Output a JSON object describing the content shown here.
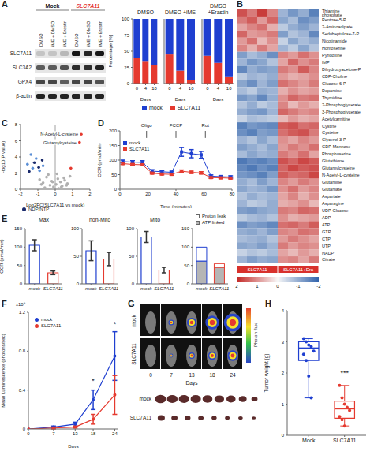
{
  "blot": {
    "panel": "A",
    "groups": [
      "Mock",
      "SLC7A11"
    ],
    "lanes": [
      "DMSO",
      "iME + DMSO",
      "iME + Erastin",
      "DMSO",
      "iME + DMSO",
      "iME + Erastin"
    ],
    "rows": [
      "SLC7A11",
      "SLC3A2",
      "GPX4",
      "β-actin"
    ],
    "intensity": [
      [
        0.15,
        0.15,
        0.2,
        0.9,
        0.85,
        0.9
      ],
      [
        0.6,
        0.6,
        0.65,
        0.8,
        0.8,
        0.85
      ],
      [
        0.7,
        0.7,
        0.6,
        0.7,
        0.7,
        0.65
      ],
      [
        0.85,
        0.85,
        0.85,
        0.85,
        0.85,
        0.85
      ]
    ]
  },
  "imaging": {
    "panel": "G",
    "rows": [
      "mock",
      "SLC7A11"
    ],
    "days": [
      0,
      7,
      13,
      18,
      24
    ],
    "x_label": "Days",
    "colorbar_label": "Photon flux",
    "tumor_rows": [
      "mock",
      "SLC7A11"
    ]
  },
  "chart_data": [
    {
      "type": "bar",
      "stacked": true,
      "title": "DMSO",
      "categories": [
        0,
        4,
        10
      ],
      "x_label": "Days",
      "y_label": "Percentage [%]",
      "ylim": [
        0,
        100
      ],
      "yticks": [
        0,
        25,
        50,
        75,
        100
      ],
      "legend": "bottom",
      "series": [
        {
          "name": "mock",
          "color": "#1f3fd0",
          "values": [
            60,
            65,
            72
          ]
        },
        {
          "name": "SLC7A11",
          "color": "#e53a2f",
          "values": [
            40,
            35,
            28
          ]
        }
      ]
    },
    {
      "type": "bar",
      "stacked": true,
      "title": "DMSO +iME",
      "categories": [
        0,
        4,
        10
      ],
      "x_label": "Days",
      "ylim": [
        0,
        100
      ],
      "yticks": [
        0,
        25,
        50,
        75,
        100
      ],
      "tick_labels": "x",
      "series": [
        {
          "name": "mock",
          "color": "#1f3fd0",
          "values": [
            55,
            80,
            95
          ]
        },
        {
          "name": "SLC7A11",
          "color": "#e53a2f",
          "values": [
            45,
            20,
            5
          ]
        }
      ]
    },
    {
      "type": "bar",
      "stacked": true,
      "title": "DMSO +Erastin",
      "categories": [
        0,
        4,
        10
      ],
      "x_label": "Days",
      "ylim": [
        0,
        100
      ],
      "yticks": [
        0,
        25,
        50,
        75,
        100
      ],
      "tick_labels": "x",
      "series": [
        {
          "name": "mock",
          "color": "#1f3fd0",
          "values": [
            57,
            68,
            90
          ]
        },
        {
          "name": "SLC7A11",
          "color": "#e53a2f",
          "values": [
            43,
            32,
            10
          ]
        }
      ]
    },
    {
      "panel": "B",
      "type": "heatmap",
      "tick_labels": "y",
      "groups": [
        "SLC7A11",
        "SLC7A11+Era"
      ],
      "colorbar": {
        "range": [
          -2,
          2
        ],
        "ticks": [
          2,
          1,
          0,
          -1,
          -2
        ]
      },
      "rows": [
        "Thiamine phosphate",
        "Pentose-5-P",
        "2-Aminoadipate",
        "Sedoheptulose-7-P",
        "Nicotinamide",
        "Homoserine",
        "Pyridoxine",
        "IMP",
        "Dihydroxyacetone-P",
        "CDP-Choline",
        "Glucose-6-P",
        "Dopamine",
        "Thymidine",
        "2-Phosphoglycerate",
        "3-Phosphoglycerate",
        "Acetylcarnitine",
        "Cystine",
        "Cysteine",
        "Glycerol-3-P",
        "GDP-Mannose",
        "Phosphoserine",
        "Glutathione",
        "Glutamylcysteine",
        "N-Acetyl-L-cysteine",
        "Glutamine",
        "Glutamate",
        "Aspartate",
        "Asparagine",
        "UDP-Glucose",
        "ADP",
        "ATP",
        "GTP",
        "CTP",
        "UTP",
        "NADP",
        "Citrate"
      ],
      "values": [
        [
          1.6,
          1.2,
          1.8,
          1.1,
          -0.9,
          -1.3,
          -1.0,
          -1.6
        ],
        [
          1.2,
          1.5,
          0.9,
          1.4,
          -1.1,
          -0.8,
          -1.4,
          -1.2
        ],
        [
          0.8,
          1.1,
          1.3,
          0.7,
          -0.6,
          -1.0,
          -1.2,
          -0.9
        ],
        [
          1.4,
          0.9,
          1.0,
          1.2,
          -1.2,
          -0.7,
          -0.9,
          -1.5
        ],
        [
          0.9,
          1.3,
          0.6,
          1.0,
          -0.5,
          -1.1,
          -0.8,
          -1.0
        ],
        [
          1.1,
          0.7,
          1.2,
          0.8,
          -0.9,
          -0.6,
          -1.1,
          -0.7
        ],
        [
          -1.2,
          -0.8,
          -1.0,
          -1.4,
          1.1,
          0.9,
          1.3,
          1.0
        ],
        [
          -0.9,
          -1.3,
          -1.1,
          -0.7,
          0.8,
          1.4,
          1.0,
          1.2
        ],
        [
          -1.5,
          -1.0,
          -1.2,
          -1.1,
          1.2,
          1.0,
          1.5,
          1.1
        ],
        [
          -0.6,
          -0.9,
          -0.8,
          -1.0,
          0.9,
          0.7,
          0.8,
          1.0
        ],
        [
          -1.1,
          -1.4,
          -0.9,
          -1.2,
          1.3,
          1.1,
          0.9,
          1.2
        ],
        [
          -0.8,
          -0.6,
          -1.0,
          -0.9,
          0.7,
          1.0,
          0.8,
          0.9
        ],
        [
          -1.3,
          -1.1,
          -1.5,
          -1.0,
          1.0,
          1.4,
          1.2,
          1.3
        ],
        [
          -0.7,
          -1.0,
          -0.6,
          -0.8,
          1.1,
          0.6,
          0.9,
          0.7
        ],
        [
          -1.0,
          -1.2,
          -1.3,
          -0.9,
          1.4,
          1.2,
          1.0,
          1.1
        ],
        [
          -0.5,
          -0.8,
          -0.7,
          -0.6,
          0.6,
          0.9,
          0.7,
          0.8
        ],
        [
          -1.6,
          -1.3,
          -1.4,
          -1.5,
          1.5,
          1.6,
          1.3,
          1.4
        ],
        [
          -1.4,
          -1.6,
          -1.2,
          -1.3,
          1.3,
          1.5,
          1.6,
          1.2
        ],
        [
          -0.9,
          -0.7,
          -1.1,
          -0.8,
          1.0,
          0.8,
          1.1,
          0.9
        ],
        [
          -1.2,
          -1.0,
          -0.8,
          -1.1,
          0.9,
          1.2,
          1.0,
          1.3
        ],
        [
          -0.8,
          -1.1,
          -0.9,
          -1.0,
          1.2,
          1.0,
          1.3,
          0.8
        ],
        [
          -1.7,
          -1.5,
          -1.6,
          -1.4,
          1.6,
          1.4,
          1.7,
          1.5
        ],
        [
          -1.5,
          -1.7,
          -1.4,
          -1.6,
          1.4,
          1.7,
          1.5,
          1.6
        ],
        [
          -1.3,
          -1.4,
          -1.6,
          -1.2,
          1.5,
          1.3,
          1.4,
          1.7
        ],
        [
          -1.0,
          -0.8,
          -1.2,
          -0.9,
          1.1,
          0.9,
          1.2,
          1.0
        ],
        [
          -1.1,
          -0.9,
          -1.0,
          -1.3,
          1.0,
          1.3,
          0.9,
          1.1
        ],
        [
          -0.7,
          -1.0,
          -0.8,
          -0.9,
          0.8,
          1.1,
          0.7,
          1.0
        ],
        [
          -0.9,
          -0.6,
          -0.7,
          -1.0,
          0.7,
          0.8,
          1.0,
          0.6
        ],
        [
          -1.2,
          -1.3,
          -1.1,
          -1.0,
          1.2,
          1.1,
          1.4,
          1.3
        ],
        [
          -0.6,
          -0.8,
          -0.9,
          -0.7,
          1.0,
          0.7,
          0.8,
          0.9
        ],
        [
          -1.4,
          -1.2,
          -1.3,
          -1.5,
          1.3,
          1.4,
          1.2,
          1.5
        ],
        [
          -1.0,
          -1.1,
          -0.9,
          -1.2,
          1.1,
          1.0,
          1.3,
          1.2
        ],
        [
          -0.8,
          -0.9,
          -1.0,
          -0.7,
          0.9,
          1.2,
          1.0,
          0.8
        ],
        [
          -1.1,
          -1.0,
          -1.2,
          -0.9,
          1.2,
          0.9,
          1.1,
          1.0
        ],
        [
          -0.5,
          -0.7,
          -0.6,
          -0.8,
          0.8,
          0.6,
          0.9,
          0.7
        ],
        [
          -0.9,
          -1.2,
          -1.0,
          -1.1,
          1.0,
          1.1,
          0.8,
          1.2
        ]
      ]
    },
    {
      "panel": "C",
      "type": "scatter",
      "x_label": "Log2FC(SLC7A11 vs mock)",
      "y_label": "-log10(P value)",
      "xlim": [
        -2,
        2
      ],
      "xticks": [
        -2,
        -1,
        0,
        1,
        2
      ],
      "ylim": [
        0,
        8
      ],
      "yticks": [
        0,
        2,
        4,
        6,
        8
      ],
      "legend": "bottom",
      "reference_lines": {
        "x": [
          0
        ],
        "y": [
          2
        ]
      },
      "series": [
        {
          "color": "#b0b0b0",
          "x": [
            -0.9,
            -0.7,
            -0.5,
            -0.3,
            -0.2,
            -0.1,
            0.05,
            0.15,
            0.3,
            0.4,
            0.55,
            0.7,
            0.85,
            -0.6,
            -0.4,
            0.2,
            0.5,
            -0.8,
            0.1,
            0.35,
            -0.15,
            0.65
          ],
          "y": [
            1.2,
            0.8,
            1.5,
            0.5,
            1.0,
            0.3,
            0.6,
            1.3,
            0.9,
            0.4,
            1.1,
            0.7,
            1.6,
            0.2,
            1.8,
            0.1,
            1.4,
            0.6,
            1.9,
            0.3,
            0.9,
            0.5
          ]
        },
        {
          "color": "#5b8fd6",
          "x": [
            -1.6,
            -1.3,
            -1.1,
            -0.9,
            -1.4,
            -0.7
          ],
          "y": [
            3.1,
            2.6,
            3.8,
            2.3,
            4.3,
            2.9
          ]
        },
        {
          "name": "NDP/NTP",
          "color": "#1a2a6c",
          "x": [
            -1.2,
            -0.95,
            -0.75,
            -1.5
          ],
          "y": [
            3.3,
            2.7,
            3.6,
            2.2
          ]
        },
        {
          "color": "#e53a2f",
          "x": [
            1.5,
            1.4,
            0.9
          ],
          "y": [
            6.8,
            5.8,
            2.6
          ]
        }
      ],
      "annotations": [
        {
          "x": 1.5,
          "y": 6.8,
          "text": "N-Acetyl-L-cysteine"
        },
        {
          "x": 1.4,
          "y": 5.8,
          "text": "Glutamylcysteine"
        }
      ]
    },
    {
      "panel": "D",
      "type": "line",
      "x_label": "Time (minutes)",
      "y_label": "OCR (pmol/min)",
      "xlim": [
        0,
        80
      ],
      "xticks": [
        0,
        20,
        40,
        60,
        80
      ],
      "ylim": [
        0,
        200
      ],
      "yticks": [
        0,
        50,
        100,
        150,
        200
      ],
      "legend": "upper left",
      "x": [
        2,
        9,
        16,
        23,
        30,
        37,
        44,
        51,
        58,
        65,
        72,
        79
      ],
      "series": [
        {
          "name": "mock",
          "color": "#1f3fd0",
          "marker": "square",
          "values": [
            95,
            93,
            92,
            62,
            60,
            58,
            128,
            122,
            118,
            45,
            43,
            42
          ],
          "errors": [
            5,
            5,
            6,
            5,
            4,
            4,
            15,
            14,
            12,
            4,
            4,
            4
          ]
        },
        {
          "name": "SLC7A11",
          "color": "#e53a2f",
          "marker": "square",
          "values": [
            88,
            85,
            84,
            55,
            52,
            51,
            62,
            58,
            56,
            40,
            39,
            38
          ],
          "errors": [
            3,
            3,
            3,
            3,
            3,
            3,
            4,
            4,
            4,
            3,
            3,
            3
          ]
        }
      ],
      "annotations": [
        {
          "x": 19,
          "text": "Oligo"
        },
        {
          "x": 40,
          "text": "FCCP"
        },
        {
          "x": 61,
          "text": "Rot"
        }
      ]
    },
    {
      "panel": "E",
      "type": "bar",
      "title": "Max",
      "y_label": "OCR (pmol/min)",
      "categories": [
        "mock",
        "SLC7A11"
      ],
      "values": [
        105,
        30
      ],
      "errors": [
        15,
        5
      ],
      "colors": [
        "#1f3fd0",
        "#e53a2f"
      ],
      "ylim": [
        0,
        150
      ],
      "yticks": [
        0,
        50,
        100,
        150
      ]
    },
    {
      "type": "bar",
      "title": "non-Mito",
      "categories": [
        "mock",
        "SLC7A11"
      ],
      "values": [
        60,
        45
      ],
      "errors": [
        18,
        12
      ],
      "colors": [
        "#1f3fd0",
        "#e53a2f"
      ],
      "ylim": [
        0,
        100
      ],
      "yticks": [
        0,
        50,
        100
      ]
    },
    {
      "type": "bar",
      "title": "Mito",
      "categories": [
        "mock",
        "SLC7A11"
      ],
      "values": [
        85,
        25
      ],
      "errors": [
        10,
        5
      ],
      "colors": [
        "#1f3fd0",
        "#e53a2f"
      ],
      "ylim": [
        0,
        100
      ],
      "yticks": [
        0,
        50,
        100
      ]
    },
    {
      "type": "bar",
      "stacked": true,
      "legend": "top",
      "categories": [
        "mock",
        "SLC7A11"
      ],
      "colors": [
        "#1f3fd0",
        "#e53a2f"
      ],
      "ylim": [
        0,
        150
      ],
      "yticks": [
        0,
        50,
        100,
        150
      ],
      "series": [
        {
          "name": "Proton leak",
          "color": "#ffffff",
          "values": [
            38,
            10
          ]
        },
        {
          "name": "ATP linked",
          "color": "#b5b5b5",
          "values": [
            62,
            45
          ]
        }
      ]
    },
    {
      "panel": "F",
      "type": "line",
      "x_label": "Days",
      "y_label": "Mean Luminescence (photons/sec)",
      "y_multiplier": "x10⁹",
      "legend": "upper left",
      "x": [
        0,
        7,
        13,
        18,
        24
      ],
      "xlim": [
        0,
        25
      ],
      "xticks": [
        0,
        7,
        13,
        18,
        24
      ],
      "ylim": [
        0,
        1.2
      ],
      "yticks": [
        0,
        0.4,
        0.8,
        1.2
      ],
      "series": [
        {
          "name": "mock",
          "color": "#1f3fd0",
          "marker": "circle",
          "values": [
            0,
            0.02,
            0.05,
            0.3,
            0.75
          ],
          "errors": [
            0,
            0.01,
            0.02,
            0.1,
            0.25
          ]
        },
        {
          "name": "SLC7A11",
          "color": "#e53a2f",
          "marker": "circle",
          "values": [
            0,
            0.01,
            0.02,
            0.1,
            0.35
          ],
          "errors": [
            0,
            0.01,
            0.01,
            0.05,
            0.2
          ]
        }
      ],
      "annotations": [
        {
          "x": 18,
          "y": 0.5,
          "text": "*"
        },
        {
          "x": 24,
          "y": 1.08,
          "text": "*"
        }
      ]
    },
    {
      "panel": "H",
      "type": "box",
      "y_label": "Tumor weight (g)",
      "categories": [
        "Mock",
        "SLC7A11"
      ],
      "colors": [
        "#1f3fd0",
        "#e53a2f"
      ],
      "ylim": [
        0,
        4
      ],
      "yticks": [
        0,
        1,
        2,
        3,
        4
      ],
      "boxes": [
        {
          "min": 1.2,
          "q1": 2.4,
          "median": 2.8,
          "q3": 3.0,
          "max": 3.1
        },
        {
          "min": 0.3,
          "q1": 0.55,
          "median": 0.85,
          "q3": 1.1,
          "max": 1.6
        }
      ],
      "points": [
        [
          3.1,
          3.0,
          2.9,
          2.85,
          2.7,
          2.6,
          2.4,
          1.9,
          1.2
        ],
        [
          1.6,
          1.2,
          1.0,
          0.9,
          0.8,
          0.6,
          0.5,
          0.3
        ]
      ],
      "annotations": [
        {
          "x": "SLC7A11",
          "y": 2.0,
          "text": "***"
        }
      ]
    }
  ]
}
